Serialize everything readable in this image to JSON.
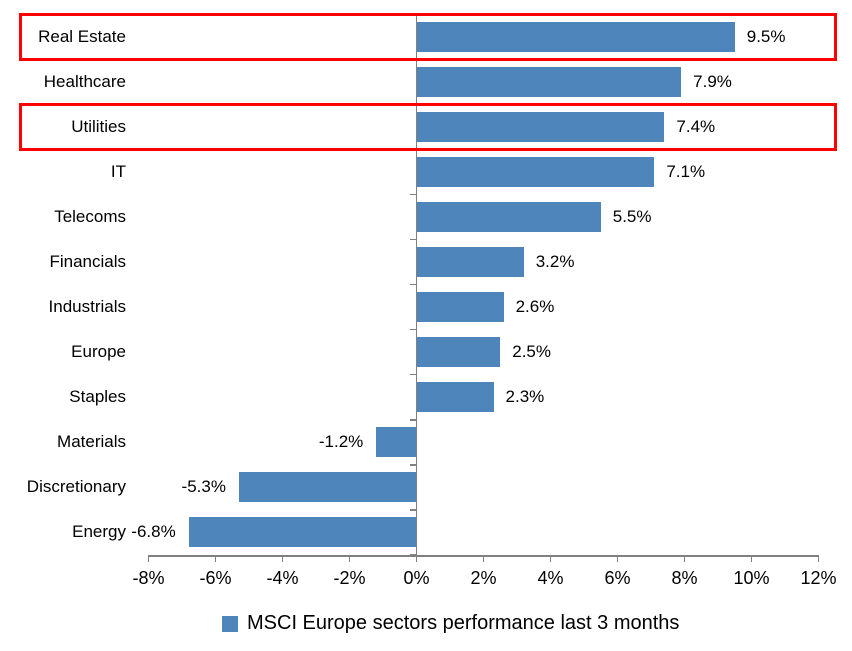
{
  "chart_data": {
    "type": "bar",
    "orientation": "horizontal",
    "title": "",
    "categories": [
      "Real Estate",
      "Healthcare",
      "Utilities",
      "IT",
      "Telecoms",
      "Financials",
      "Industrials",
      "Europe",
      "Staples",
      "Materials",
      "Discretionary",
      "Energy"
    ],
    "values": [
      9.5,
      7.9,
      7.4,
      7.1,
      5.5,
      3.2,
      2.6,
      2.5,
      2.3,
      -1.2,
      -5.3,
      -6.8
    ],
    "value_labels": [
      "9.5%",
      "7.9%",
      "7.4%",
      "7.1%",
      "5.5%",
      "3.2%",
      "2.6%",
      "2.5%",
      "2.3%",
      "-1.2%",
      "-5.3%",
      "-6.8%"
    ],
    "x_tick_labels": [
      "-8%",
      "-6%",
      "-4%",
      "-2%",
      "0%",
      "2%",
      "4%",
      "6%",
      "8%",
      "10%",
      "12%"
    ],
    "x_tick_values": [
      -8,
      -6,
      -4,
      -2,
      0,
      2,
      4,
      6,
      8,
      10,
      12
    ],
    "xlim": [
      -8,
      12
    ],
    "grid": false,
    "legend": {
      "label": "MSCI Europe sectors performance last 3 months",
      "position": "bottom-center"
    },
    "highlighted_categories": [
      "Real Estate",
      "Utilities"
    ],
    "colors": {
      "bar": "#4E86BC",
      "axis": "#808080",
      "text": "#000000",
      "highlight_border": "#FF0000"
    }
  }
}
